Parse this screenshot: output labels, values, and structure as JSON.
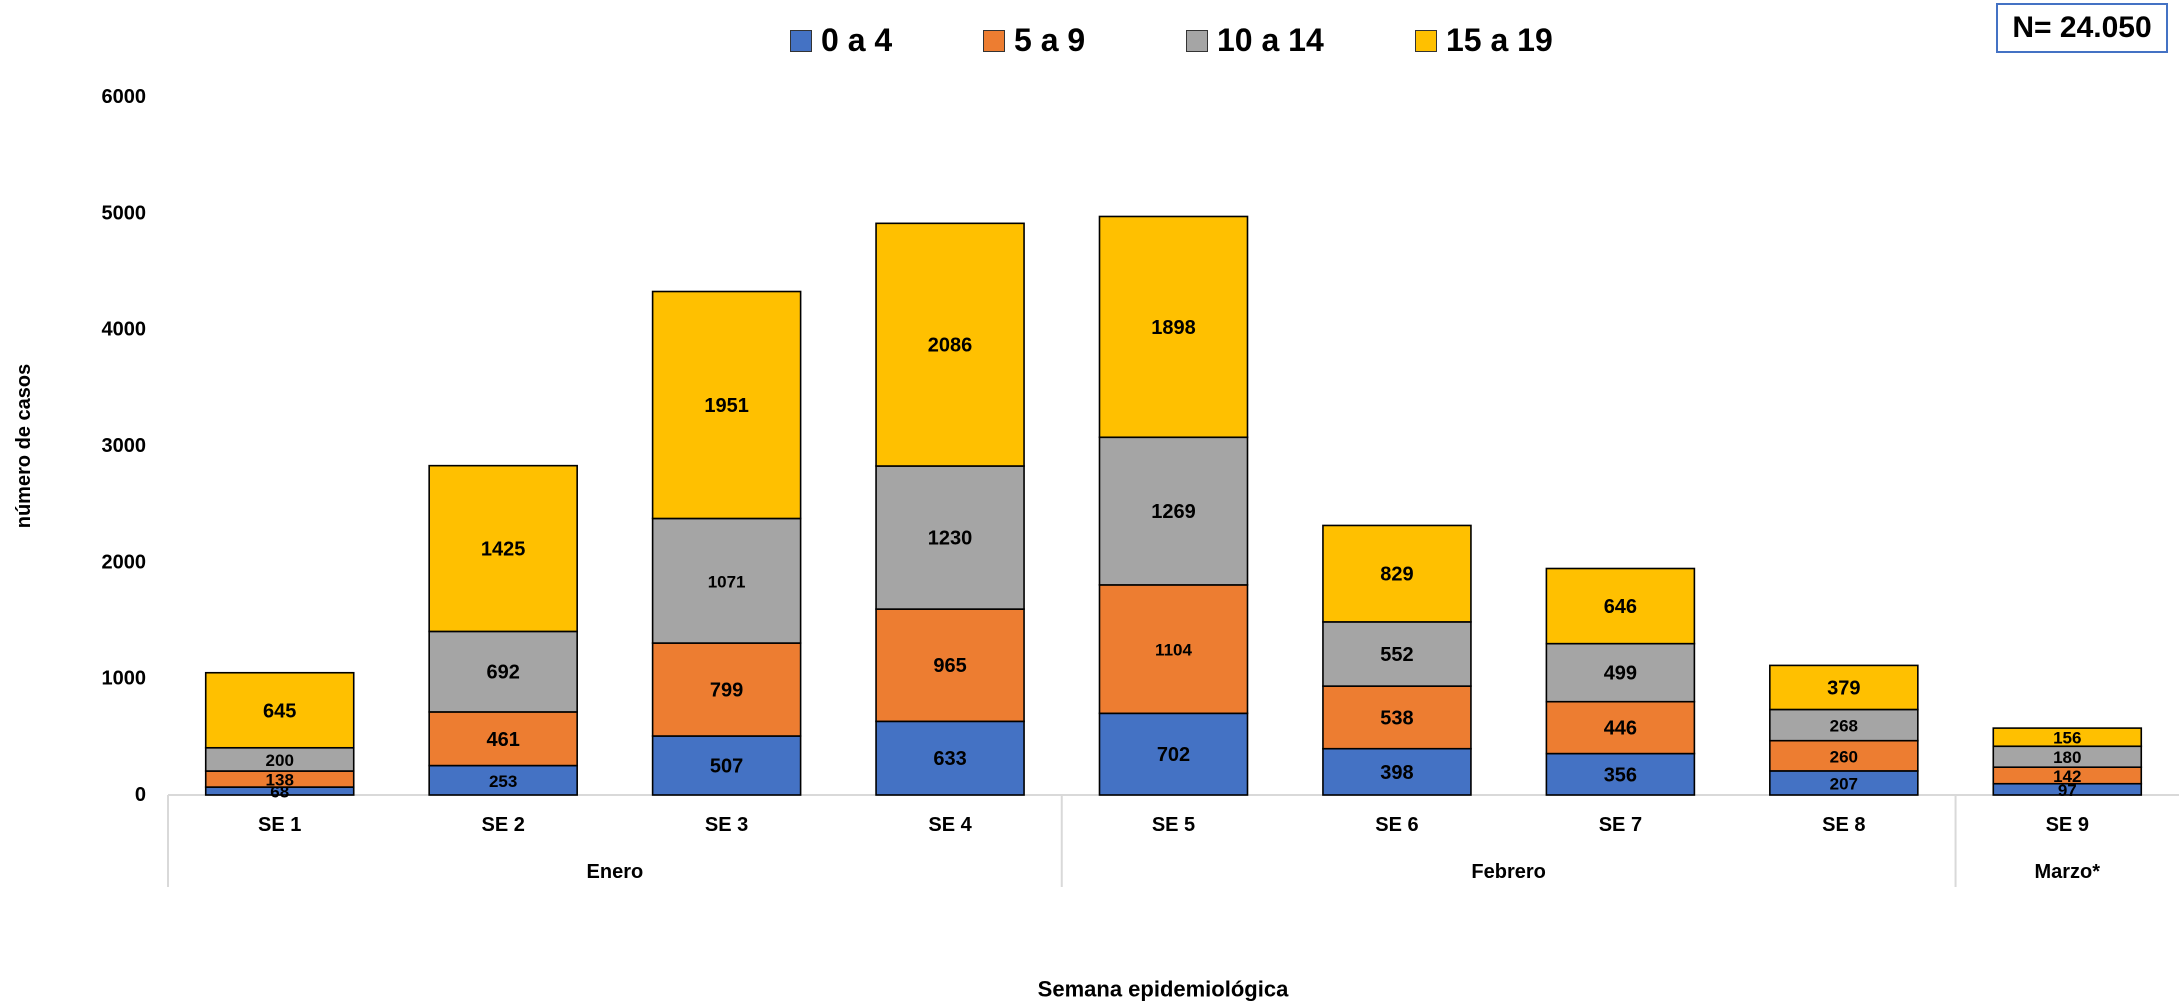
{
  "n_label": "N= 24.050",
  "chart_data": {
    "type": "bar",
    "stacked": true,
    "title": "",
    "xlabel": "Semana epidemiológica",
    "ylabel": "número de casos",
    "ylim": [
      0,
      6000
    ],
    "yticks": [
      0,
      1000,
      2000,
      3000,
      4000,
      5000,
      6000
    ],
    "categories": [
      "SE 1",
      "SE 2",
      "SE 3",
      "SE 4",
      "SE 5",
      "SE 6",
      "SE 7",
      "SE 8",
      "SE 9"
    ],
    "groups": [
      {
        "label": "Enero",
        "start": 0,
        "end": 3
      },
      {
        "label": "Febrero",
        "start": 4,
        "end": 7
      },
      {
        "label": "Marzo*",
        "start": 8,
        "end": 8
      }
    ],
    "series": [
      {
        "name": "0 a 4",
        "color": "#4472c4",
        "values": [
          68,
          253,
          507,
          633,
          702,
          398,
          356,
          207,
          97
        ]
      },
      {
        "name": "5 a 9",
        "color": "#ed7d31",
        "values": [
          138,
          461,
          799,
          965,
          1104,
          538,
          446,
          260,
          142
        ]
      },
      {
        "name": "10 a 14",
        "color": "#a5a5a5",
        "values": [
          200,
          692,
          1071,
          1230,
          1269,
          552,
          499,
          268,
          180
        ]
      },
      {
        "name": "15 a 19",
        "color": "#ffc000",
        "values": [
          645,
          1425,
          1951,
          2086,
          1898,
          829,
          646,
          379,
          156
        ]
      }
    ],
    "legend_position": "top",
    "grid": false
  }
}
